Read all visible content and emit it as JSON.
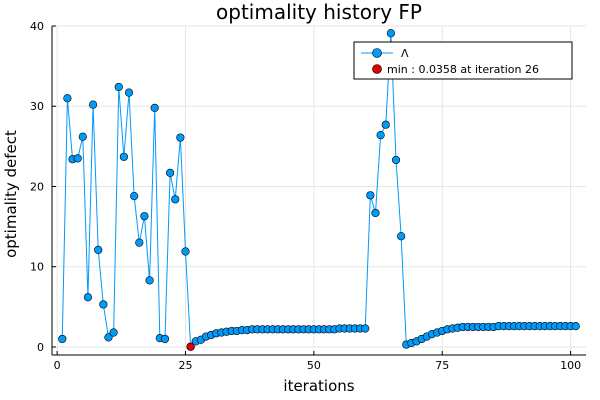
{
  "chart_data": {
    "type": "line",
    "title": "optimality history FP",
    "xlabel": "iterations",
    "ylabel": "optimality defect",
    "xlim": [
      -1,
      103
    ],
    "ylim": [
      -1,
      40
    ],
    "xticks": [
      0,
      25,
      50,
      75,
      100
    ],
    "yticks": [
      0,
      10,
      20,
      30,
      40
    ],
    "grid": true,
    "legend_position": "top-right",
    "series": [
      {
        "name": "Λ",
        "color": "#009AFA",
        "marker": "circle",
        "x": [
          1,
          2,
          3,
          4,
          5,
          6,
          7,
          8,
          9,
          10,
          11,
          12,
          13,
          14,
          15,
          16,
          17,
          18,
          19,
          20,
          21,
          22,
          23,
          24,
          25,
          26,
          27,
          28,
          29,
          30,
          31,
          32,
          33,
          34,
          35,
          36,
          37,
          38,
          39,
          40,
          41,
          42,
          43,
          44,
          45,
          46,
          47,
          48,
          49,
          50,
          51,
          52,
          53,
          54,
          55,
          56,
          57,
          58,
          59,
          60,
          61,
          62,
          63,
          64,
          65,
          66,
          67,
          68,
          69,
          70,
          71,
          72,
          73,
          74,
          75,
          76,
          77,
          78,
          79,
          80,
          81,
          82,
          83,
          84,
          85,
          86,
          87,
          88,
          89,
          90,
          91,
          92,
          93,
          94,
          95,
          96,
          97,
          98,
          99,
          100,
          101
        ],
        "y": [
          1.0,
          31.0,
          23.4,
          23.5,
          26.2,
          6.2,
          30.2,
          12.1,
          5.3,
          1.2,
          1.8,
          32.4,
          23.7,
          31.7,
          18.8,
          13.0,
          16.3,
          8.3,
          29.8,
          1.1,
          1.0,
          21.7,
          18.4,
          26.1,
          11.9,
          0.0358,
          0.7,
          0.9,
          1.3,
          1.5,
          1.7,
          1.8,
          1.9,
          2.0,
          2.0,
          2.1,
          2.1,
          2.2,
          2.2,
          2.2,
          2.2,
          2.2,
          2.2,
          2.2,
          2.2,
          2.2,
          2.2,
          2.2,
          2.2,
          2.2,
          2.2,
          2.2,
          2.2,
          2.2,
          2.3,
          2.3,
          2.3,
          2.3,
          2.3,
          2.3,
          18.9,
          16.7,
          26.4,
          27.7,
          39.1,
          23.3,
          13.8,
          0.3,
          0.5,
          0.7,
          1.0,
          1.3,
          1.6,
          1.8,
          2.0,
          2.2,
          2.3,
          2.4,
          2.5,
          2.5,
          2.5,
          2.5,
          2.5,
          2.5,
          2.5,
          2.6,
          2.6,
          2.6,
          2.6,
          2.6,
          2.6,
          2.6,
          2.6,
          2.6,
          2.6,
          2.6,
          2.6,
          2.6,
          2.6,
          2.6,
          2.6
        ]
      },
      {
        "name": "min : 0.0358 at iteration 26",
        "color": "#E00000",
        "marker": "circle",
        "x": [
          26
        ],
        "y": [
          0.0358
        ]
      }
    ]
  }
}
